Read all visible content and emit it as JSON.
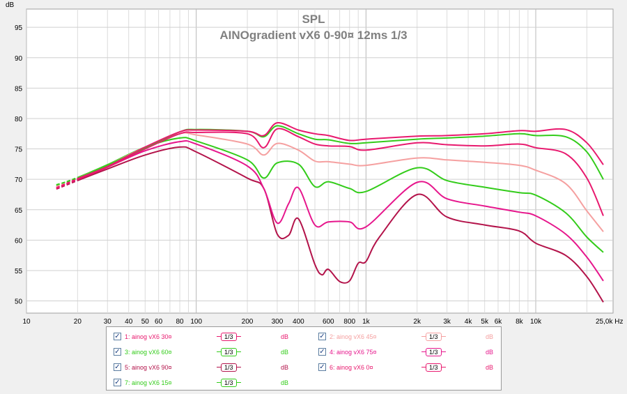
{
  "chart_data": {
    "type": "line",
    "title": "SPL",
    "subtitle": "AINOgradient vX6 0-90¤ 12ms 1/3",
    "ylabel": "dB",
    "xlabel": "Hz",
    "x_scale": "log",
    "xlim": [
      10,
      25000
    ],
    "ylim": [
      48,
      98
    ],
    "grid": true,
    "y_ticks": [
      "95",
      "90",
      "85",
      "80",
      "75",
      "70",
      "65",
      "60",
      "55",
      "50"
    ],
    "x_ticks": [
      "10",
      "20",
      "30",
      "40",
      "50",
      "60",
      "80",
      "100",
      "200",
      "300",
      "400",
      "600",
      "800",
      "1k",
      "2k",
      "3k",
      "4k",
      "5k",
      "6k",
      "8k",
      "10k",
      "25,0k Hz"
    ],
    "series": [
      {
        "name": "1: ainog vX6 30¤",
        "color": "#e8196e",
        "smoothing": "1/3",
        "unit": "dB",
        "x": [
          15,
          20,
          30,
          50,
          80,
          100,
          200,
          250,
          300,
          400,
          500,
          600,
          800,
          1000,
          2000,
          3000,
          5000,
          8000,
          10000,
          15000,
          20000,
          25000
        ],
        "y": [
          68.6,
          70.1,
          72.1,
          75.3,
          77.8,
          78.1,
          77.9,
          77.2,
          79.3,
          78.1,
          77.5,
          77.2,
          76.4,
          76.6,
          77.1,
          77.2,
          77.5,
          78.0,
          77.9,
          78.2,
          76.0,
          72.4
        ]
      },
      {
        "name": "2: ainog vX6 45¤",
        "color": "#f5a0a0",
        "smoothing": "1/3",
        "unit": "dB",
        "x": [
          15,
          20,
          30,
          50,
          80,
          100,
          200,
          250,
          300,
          400,
          500,
          600,
          800,
          1000,
          2000,
          3000,
          5000,
          8000,
          10000,
          15000,
          20000,
          25000
        ],
        "y": [
          68.8,
          70.2,
          72.3,
          75.3,
          77.5,
          77.3,
          75.8,
          74.0,
          75.9,
          74.8,
          73.0,
          72.9,
          72.5,
          72.3,
          73.5,
          73.2,
          72.8,
          72.3,
          71.5,
          69.3,
          64.8,
          61.4
        ]
      },
      {
        "name": "3: ainog vX6 60¤",
        "color": "#33cc1a",
        "smoothing": "1/3",
        "unit": "dB",
        "x": [
          15,
          20,
          30,
          50,
          80,
          100,
          200,
          250,
          300,
          400,
          500,
          600,
          800,
          1000,
          2000,
          3000,
          5000,
          8000,
          10000,
          15000,
          20000,
          25000
        ],
        "y": [
          69.0,
          70.3,
          72.4,
          75.3,
          76.8,
          76.3,
          73.2,
          70.2,
          72.7,
          72.5,
          68.8,
          69.6,
          68.5,
          68.0,
          71.9,
          69.8,
          68.7,
          67.8,
          67.4,
          64.5,
          60.5,
          58.0
        ]
      },
      {
        "name": "4: ainog vX6 75¤",
        "color": "#e6168c",
        "smoothing": "1/3",
        "unit": "dB",
        "x": [
          15,
          20,
          30,
          50,
          80,
          100,
          200,
          250,
          300,
          350,
          400,
          500,
          600,
          800,
          1000,
          2000,
          3000,
          5000,
          8000,
          10000,
          15000,
          20000,
          25000
        ],
        "y": [
          68.7,
          70.0,
          72.0,
          74.7,
          76.2,
          75.8,
          72.2,
          68.5,
          62.8,
          66.0,
          68.6,
          62.5,
          63.0,
          63.0,
          62.2,
          69.5,
          66.8,
          65.6,
          64.6,
          64.0,
          61.0,
          57.2,
          53.3
        ]
      },
      {
        "name": "5: ainog vX6 90¤",
        "color": "#b3134a",
        "smoothing": "1/3",
        "unit": "dB",
        "x": [
          15,
          20,
          30,
          50,
          80,
          100,
          200,
          250,
          300,
          350,
          400,
          500,
          550,
          600,
          700,
          800,
          900,
          1000,
          1200,
          2000,
          3000,
          5000,
          8000,
          10000,
          15000,
          20000,
          25000
        ],
        "y": [
          68.4,
          69.8,
          71.7,
          74.0,
          75.3,
          74.5,
          70.2,
          68.5,
          61.0,
          60.8,
          63.5,
          56.0,
          54.3,
          55.2,
          53.2,
          53.3,
          56.2,
          56.5,
          60.5,
          67.5,
          63.8,
          62.5,
          61.5,
          59.5,
          57.5,
          54.0,
          49.8
        ]
      },
      {
        "name": "6: ainog vX6 0¤",
        "color": "#e8196e",
        "smoothing": "1/3",
        "unit": "dB",
        "x": [
          15,
          20,
          30,
          50,
          80,
          100,
          200,
          250,
          300,
          400,
          500,
          600,
          800,
          1000,
          2000,
          3000,
          5000,
          8000,
          10000,
          15000,
          20000,
          25000
        ],
        "y": [
          68.5,
          70.0,
          72.0,
          75.0,
          77.5,
          77.7,
          77.5,
          75.2,
          78.3,
          77.0,
          75.8,
          75.5,
          75.4,
          74.8,
          76.0,
          75.7,
          75.5,
          75.8,
          75.2,
          74.2,
          70.2,
          64.0
        ]
      },
      {
        "name": "7: ainog vX6 15¤",
        "color": "#33cc1a",
        "smoothing": "1/3",
        "unit": "dB",
        "x": [
          15,
          20,
          30,
          50,
          80,
          100,
          200,
          250,
          300,
          400,
          500,
          600,
          800,
          1000,
          2000,
          3000,
          5000,
          8000,
          10000,
          15000,
          20000,
          25000
        ],
        "y": [
          69.1,
          70.2,
          72.3,
          75.2,
          77.8,
          78.2,
          77.9,
          77.0,
          78.8,
          77.5,
          76.6,
          76.5,
          75.9,
          76.0,
          76.6,
          76.8,
          77.1,
          77.5,
          77.2,
          77.0,
          74.5,
          70.0
        ]
      }
    ]
  },
  "legend": {
    "checkbox_glyph": "✓",
    "smoothing_label": "1/3",
    "unit_label": "dB"
  }
}
